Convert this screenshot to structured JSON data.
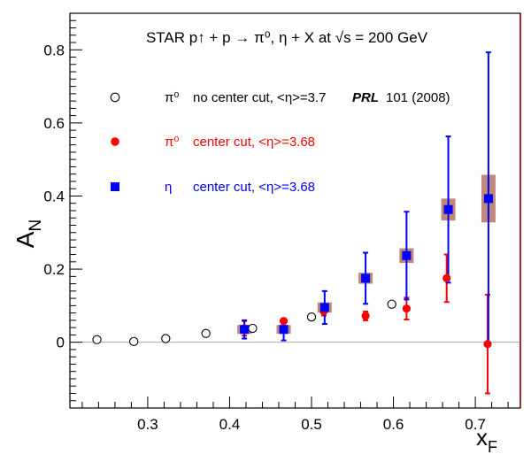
{
  "chart_data": {
    "type": "scatter",
    "title": "STAR p↑ + p → π⁰, η + X at √s = 200 GeV",
    "xlabel": "x",
    "xlabel_sub": "F",
    "ylabel": "A",
    "ylabel_sub": "N",
    "xlim": [
      0.205,
      0.755
    ],
    "ylim": [
      -0.18,
      0.9
    ],
    "x_ticks": [
      0.3,
      0.4,
      0.5,
      0.6,
      0.7
    ],
    "x_tick_labels": [
      "0.3",
      "0.4",
      "0.5",
      "0.6",
      "0.7"
    ],
    "y_ticks": [
      0,
      0.2,
      0.4,
      0.6,
      0.8
    ],
    "y_tick_labels": [
      "0",
      "0.2",
      "0.4",
      "0.6",
      "0.8"
    ],
    "zero_line": true,
    "grid": false,
    "legend_position": "top-left",
    "colors": {
      "series1": "#000000",
      "series2": "#ff0000",
      "series3": "#0000ff",
      "syst_box": "#c08878",
      "frame_right": "#8b0000",
      "zero_line": "#aaaaaa"
    },
    "series": [
      {
        "legend_symbol": "π⁰",
        "legend_text": "no center cut, <η>=3.7",
        "legend_ref_bold": "PRL",
        "legend_ref_rest": "101 (2008)",
        "marker": "open-circle",
        "color": "#000000",
        "points": [
          {
            "x": 0.238,
            "y": 0.007
          },
          {
            "x": 0.283,
            "y": 0.002
          },
          {
            "x": 0.322,
            "y": 0.01
          },
          {
            "x": 0.371,
            "y": 0.024
          },
          {
            "x": 0.428,
            "y": 0.038
          },
          {
            "x": 0.5,
            "y": 0.069
          },
          {
            "x": 0.598,
            "y": 0.104
          }
        ]
      },
      {
        "legend_symbol": "π⁰",
        "legend_text": "center cut, <η>=3.68",
        "marker": "filled-circle",
        "color": "#ff0000",
        "points": [
          {
            "x": 0.418,
            "y": 0.038,
            "err": 0.02
          },
          {
            "x": 0.466,
            "y": 0.058,
            "err": 0.006
          },
          {
            "x": 0.515,
            "y": 0.085,
            "err": 0.012
          },
          {
            "x": 0.566,
            "y": 0.072,
            "err": 0.012
          },
          {
            "x": 0.616,
            "y": 0.092,
            "err": 0.03
          },
          {
            "x": 0.665,
            "y": 0.175,
            "err": 0.065
          },
          {
            "x": 0.715,
            "y": -0.005,
            "err": 0.135
          }
        ]
      },
      {
        "legend_symbol": "η",
        "legend_text": "center cut, <η>=3.68",
        "marker": "filled-square",
        "color": "#0000ff",
        "points": [
          {
            "x": 0.418,
            "y": 0.035,
            "err": 0.025,
            "syst": 0.012
          },
          {
            "x": 0.466,
            "y": 0.035,
            "err": 0.03,
            "syst": 0.012
          },
          {
            "x": 0.516,
            "y": 0.095,
            "err": 0.045,
            "syst": 0.014
          },
          {
            "x": 0.566,
            "y": 0.175,
            "err": 0.07,
            "syst": 0.015
          },
          {
            "x": 0.616,
            "y": 0.237,
            "err": 0.12,
            "syst": 0.02
          },
          {
            "x": 0.667,
            "y": 0.363,
            "err": 0.2,
            "syst": 0.03
          },
          {
            "x": 0.716,
            "y": 0.393,
            "err": 0.4,
            "syst": 0.065
          }
        ]
      }
    ]
  }
}
